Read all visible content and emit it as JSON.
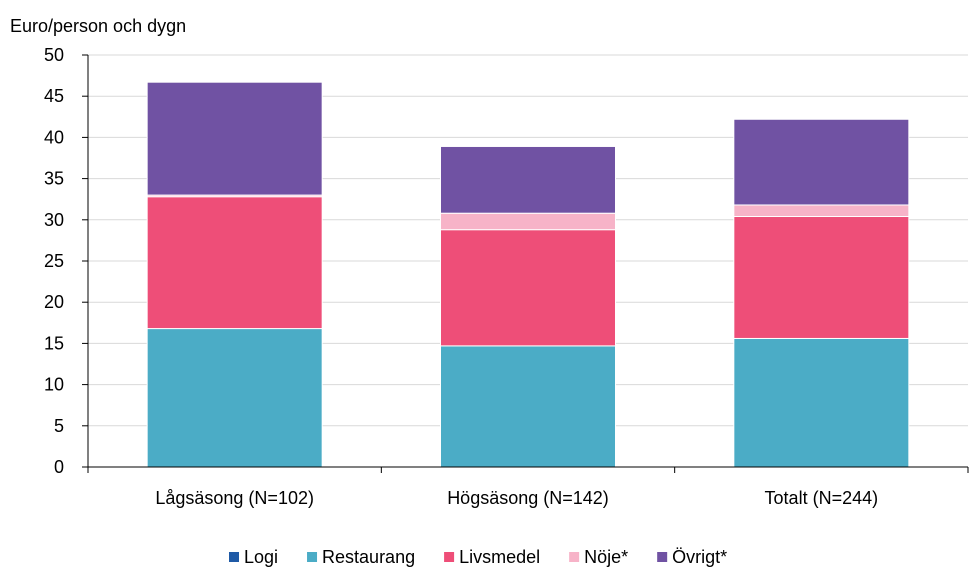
{
  "chart_data": {
    "type": "bar",
    "stacked": true,
    "ylabel": "Euro/person och dygn",
    "ylim": [
      0,
      50
    ],
    "yticks": [
      0,
      5,
      10,
      15,
      20,
      25,
      30,
      35,
      40,
      45,
      50
    ],
    "grid": true,
    "legend_position": "bottom",
    "categories": [
      "Lågsäsong (N=102)",
      "Högsäsong (N=142)",
      "Totalt (N=244)"
    ],
    "series": [
      {
        "name": "Logi",
        "color": "#1f5aa6",
        "values": [
          0,
          0,
          0
        ]
      },
      {
        "name": "Restaurang",
        "color": "#4bacc6",
        "values": [
          16.8,
          14.7,
          15.6
        ]
      },
      {
        "name": "Livsmedel",
        "color": "#ee4e78",
        "values": [
          16.0,
          14.1,
          14.8
        ]
      },
      {
        "name": "Nöje*",
        "color": "#f7b3c8",
        "values": [
          0.2,
          2.0,
          1.4
        ]
      },
      {
        "name": "Övrigt*",
        "color": "#7052a3",
        "values": [
          13.7,
          8.1,
          10.4
        ]
      }
    ]
  }
}
